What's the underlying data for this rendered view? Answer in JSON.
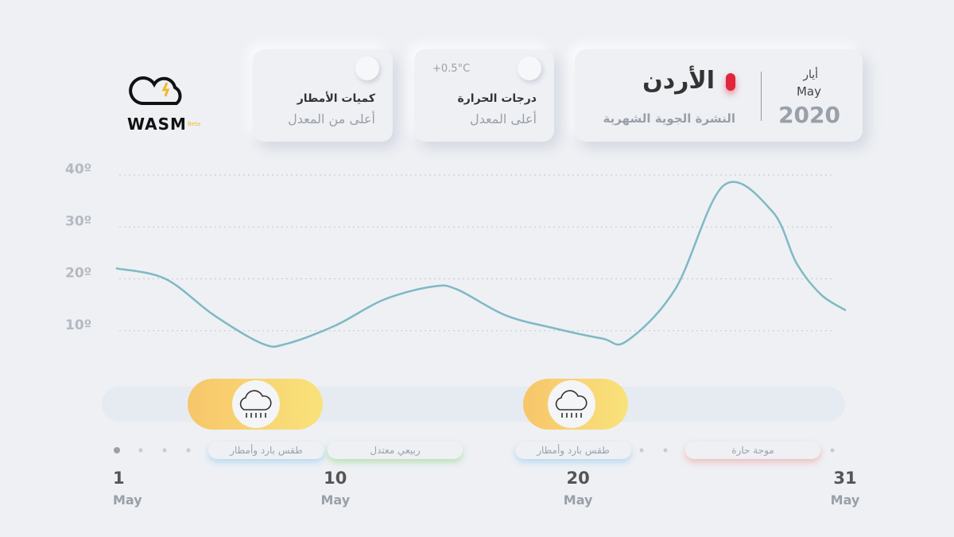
{
  "logo": {
    "name": "WASM",
    "badge": "Beta"
  },
  "header": {
    "month_ar": "أيار",
    "month_en": "May",
    "year": "2020",
    "country": "الأردن",
    "subtitle": "النشرة الجوية الشهرية"
  },
  "cards": [
    {
      "title": "درجات الحرارة",
      "status": "أعلى المعدل",
      "delta": "+0.5°C"
    },
    {
      "title": "كميات الأمطار",
      "status": "أعلى من المعدل"
    }
  ],
  "events": [
    "طقس بارد وأمطار",
    "ربيعي معتدل",
    "طقس بارد وأمطار",
    "موجة حارة"
  ],
  "chart_data": {
    "type": "line",
    "x": [
      1,
      3,
      5,
      7,
      8,
      10,
      12,
      14,
      15,
      17,
      19,
      21,
      22,
      24,
      26,
      28,
      29,
      30,
      31
    ],
    "series": [
      {
        "color": "#7fb9c4",
        "values": [
          22,
          20,
          13,
          7.5,
          7.5,
          11,
          16,
          18.5,
          18,
          13,
          10.5,
          8.5,
          8,
          18,
          38,
          33,
          23,
          17,
          14
        ]
      }
    ],
    "xlim": [
      1,
      31
    ],
    "xticks": [
      1,
      10,
      20,
      31
    ],
    "x_unit": "May",
    "ylim": [
      0,
      40
    ],
    "yticks": [
      {
        "value": 10,
        "label": "10º"
      },
      {
        "value": 20,
        "label": "20º"
      },
      {
        "value": 30,
        "label": "30º"
      },
      {
        "value": 40,
        "label": "40º"
      }
    ],
    "grid": true
  }
}
